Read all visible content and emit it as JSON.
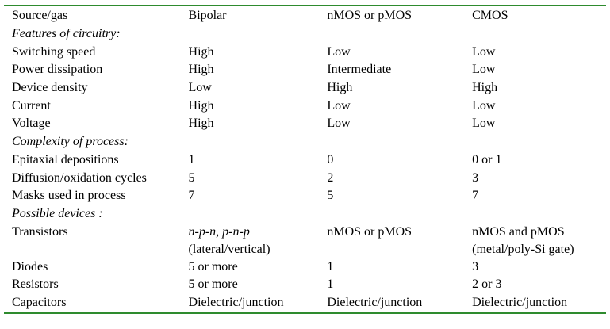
{
  "header": {
    "col0": "Source/gas",
    "col1": "Bipolar",
    "col2": "nMOS or pMOS",
    "col3": "CMOS"
  },
  "sections": [
    {
      "title": "Features of circuitry:",
      "rows": [
        {
          "label": "Switching speed",
          "bipolar": "High",
          "nmos": "Low",
          "cmos": "Low"
        },
        {
          "label": "Power dissipation",
          "bipolar": "High",
          "nmos": "Intermediate",
          "cmos": "Low"
        },
        {
          "label": "Device density",
          "bipolar": "Low",
          "nmos": "High",
          "cmos": "High"
        },
        {
          "label": "Current",
          "bipolar": "High",
          "nmos": "Low",
          "cmos": "Low"
        },
        {
          "label": "Voltage",
          "bipolar": "High",
          "nmos": "Low",
          "cmos": "Low"
        }
      ]
    },
    {
      "title": "Complexity of process:",
      "rows": [
        {
          "label": "Epitaxial depositions",
          "bipolar": "1",
          "nmos": "0",
          "cmos": "0 or 1"
        },
        {
          "label": "Diffusion/oxidation cycles",
          "bipolar": "5",
          "nmos": "2",
          "cmos": "3"
        },
        {
          "label": "Masks used in process",
          "bipolar": "7",
          "nmos": "5",
          "cmos": "7"
        }
      ]
    },
    {
      "title": "Possible devices :",
      "rows": [
        {
          "label": "Transistors",
          "bipolar_italic": "n-p-n, p-n-p",
          "bipolar_line2": "(lateral/vertical)",
          "nmos": "nMOS or pMOS",
          "cmos": "nMOS and pMOS",
          "cmos_line2": "(metal/poly-Si gate)"
        },
        {
          "label": "Diodes",
          "bipolar": "5 or more",
          "nmos": "1",
          "cmos": "3"
        },
        {
          "label": "Resistors",
          "bipolar": "5 or more",
          "nmos": "1",
          "cmos": "2 or 3"
        },
        {
          "label": "Capacitors",
          "bipolar": "Dielectric/junction",
          "nmos": "Dielectric/junction",
          "cmos": "Dielectric/junction"
        }
      ]
    }
  ],
  "colors": {
    "rule": "#2e8b2e"
  }
}
